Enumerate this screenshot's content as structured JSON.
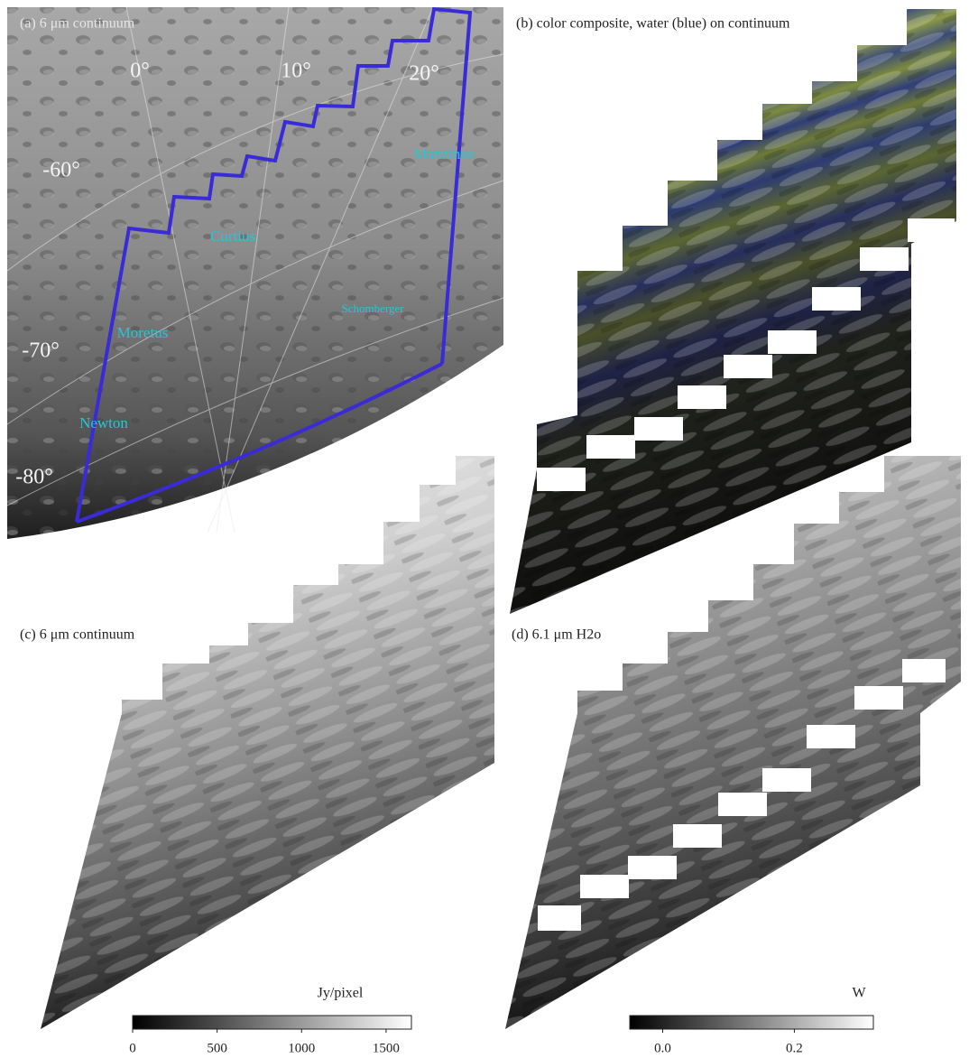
{
  "panels": [
    {
      "label": "(a) 6 μm continuum",
      "grid_labels": [
        "0°",
        "10°",
        "20°",
        "-60°",
        "-70°",
        "-80°"
      ],
      "craters": [
        "Manzinus",
        "Curtius",
        "Schomberger",
        "Moretus",
        "Newton"
      ]
    },
    {
      "label": "(b) color composite, water (blue) on continuum"
    },
    {
      "label": "(c) 6 μm continuum",
      "colorbar": {
        "label": "Jy/pixel",
        "lim": [
          0,
          1650
        ],
        "ticks": [
          0,
          500,
          1000,
          1500
        ]
      }
    },
    {
      "label": "(d) 6.1 μm H2o",
      "colorbar": {
        "label": "W",
        "lim": [
          -0.05,
          0.32
        ],
        "ticks": [
          {
            "value": 0,
            "label": "0.0"
          },
          0.2
        ]
      }
    }
  ]
}
